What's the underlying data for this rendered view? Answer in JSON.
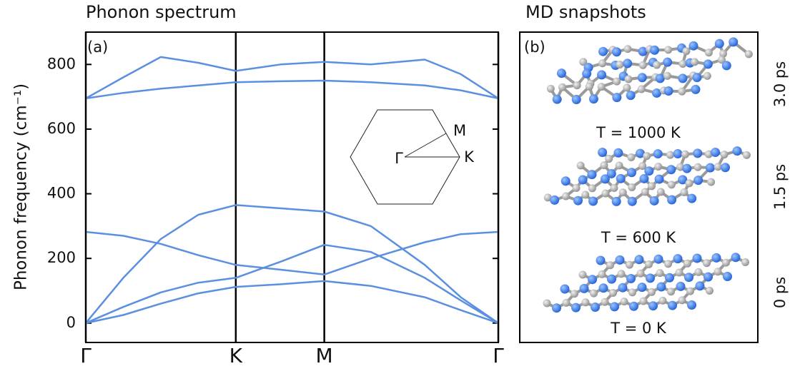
{
  "chart_data": {
    "type": "line",
    "title": "Phonon spectrum",
    "panel_label": "(a)",
    "y_label": "Phonon frequency (cm⁻¹)",
    "x": [
      0,
      0.25,
      0.5,
      0.75,
      1,
      1.3,
      1.59,
      1.9,
      2.26,
      2.5,
      2.75
    ],
    "series": [
      {
        "color": "#5b8fe0",
        "values": [
          695,
          760,
          823,
          805,
          780,
          800,
          808,
          800,
          815,
          770,
          695
        ]
      },
      {
        "color": "#5b8fe0",
        "values": [
          695,
          712,
          725,
          735,
          745,
          748,
          750,
          745,
          735,
          720,
          695
        ]
      },
      {
        "color": "#5b8fe0",
        "values": [
          282,
          270,
          245,
          210,
          180,
          165,
          150,
          200,
          250,
          275,
          282
        ]
      },
      {
        "color": "#5b8fe0",
        "values": [
          0,
          140,
          260,
          335,
          365,
          355,
          345,
          300,
          180,
          80,
          0
        ]
      },
      {
        "color": "#5b8fe0",
        "values": [
          0,
          50,
          95,
          125,
          140,
          190,
          242,
          220,
          140,
          70,
          0
        ]
      },
      {
        "color": "#5b8fe0",
        "values": [
          0,
          25,
          60,
          92,
          112,
          120,
          130,
          115,
          80,
          40,
          0
        ]
      }
    ],
    "xlim": [
      0,
      2.75
    ],
    "xticks": [
      {
        "value": 0,
        "label": "Γ"
      },
      {
        "value": 1,
        "label": "K"
      },
      {
        "value": 1.59,
        "label": "M"
      },
      {
        "value": 2.75,
        "label": "Γ"
      }
    ],
    "ylim": [
      -60,
      900
    ],
    "yticks": [
      0,
      200,
      400,
      600,
      800
    ],
    "inset_labels": {
      "gamma": "Γ",
      "m": "M",
      "k": "K"
    }
  },
  "panel_b": {
    "title": "MD snapshots",
    "panel_label": "(b)",
    "temperatures": [
      "T = 1000 K",
      "T = 600 K",
      "T = 0 K"
    ],
    "times": [
      "3.0 ps",
      "1.5 ps",
      "0 ps"
    ]
  }
}
